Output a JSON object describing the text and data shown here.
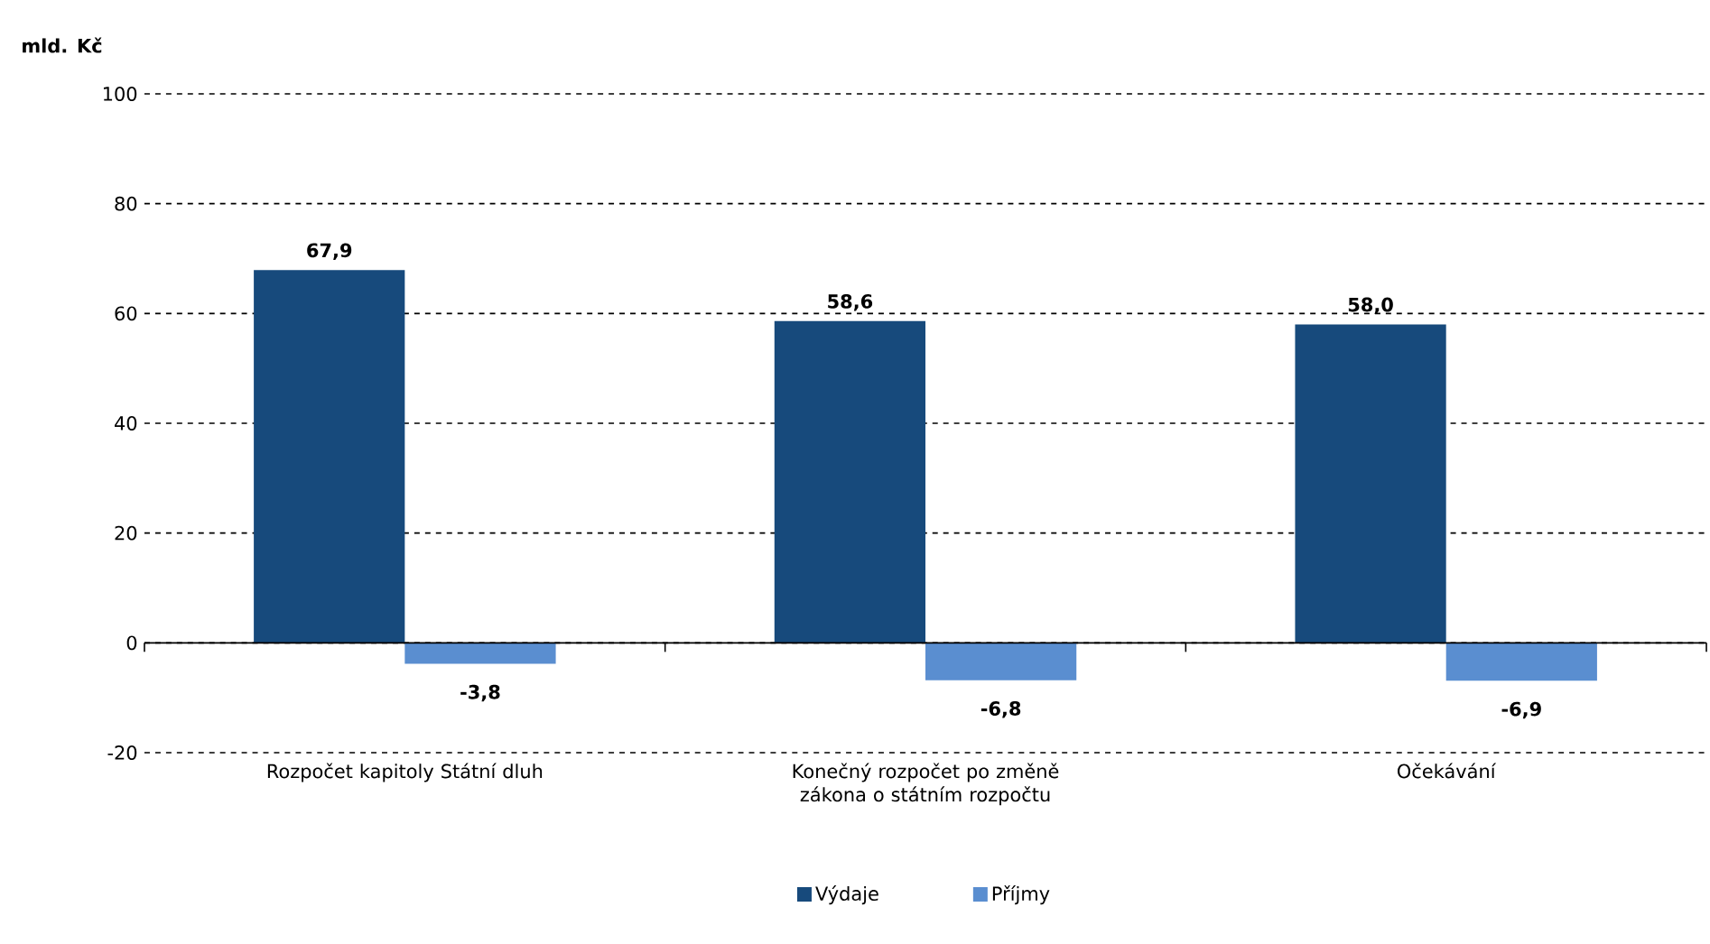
{
  "chart_data": {
    "type": "bar",
    "ylabel": "mld. Kč",
    "categories": [
      "Rozpočet kapitoly Státní dluh",
      "Konečný rozpočet po změně zákona o státním rozpočtu",
      "Očekávání"
    ],
    "series": [
      {
        "name": "Výdaje",
        "color": "#174a7c",
        "values": [
          67.9,
          58.6,
          58.0
        ],
        "value_labels": [
          "67,9",
          "58,6",
          "58,0"
        ]
      },
      {
        "name": "Příjmy",
        "color": "#5a8ed0",
        "values": [
          -3.8,
          -6.8,
          -6.9
        ],
        "value_labels": [
          "-3,8",
          "-6,8",
          "-6,9"
        ]
      }
    ],
    "ylim": [
      -20,
      100
    ],
    "yticks": [
      -20,
      0,
      20,
      40,
      60,
      80,
      100
    ],
    "grid": "y",
    "legend": "bottom"
  }
}
